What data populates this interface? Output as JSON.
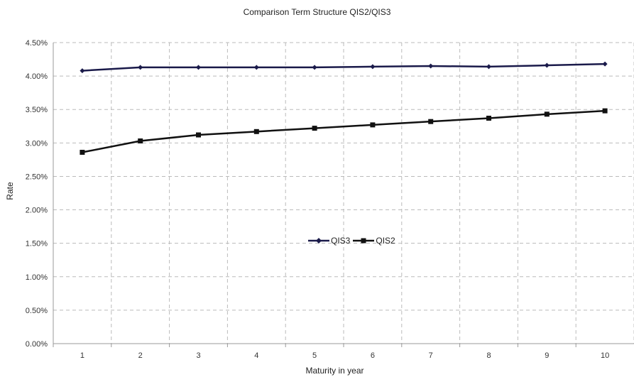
{
  "chart_data": {
    "type": "line",
    "title": "Comparison Term Structure QIS2/QIS3",
    "xlabel": "Maturity in year",
    "ylabel": "Rate",
    "categories": [
      "1",
      "2",
      "3",
      "4",
      "5",
      "6",
      "7",
      "8",
      "9",
      "10"
    ],
    "ylim": [
      0,
      0.045
    ],
    "yticks": [
      0,
      0.005,
      0.01,
      0.015,
      0.02,
      0.025,
      0.03,
      0.035,
      0.04,
      0.045
    ],
    "ytick_labels": [
      "0.00%",
      "0.50%",
      "1.00%",
      "1.50%",
      "2.00%",
      "2.50%",
      "3.00%",
      "3.50%",
      "4.00%",
      "4.50%"
    ],
    "grid": true,
    "legend_position": "center",
    "series": [
      {
        "name": "QIS3",
        "marker": "diamond",
        "color": "#1a1a4a",
        "values": [
          0.0408,
          0.0413,
          0.0413,
          0.0413,
          0.0413,
          0.0414,
          0.0415,
          0.0414,
          0.0416,
          0.0418
        ]
      },
      {
        "name": "QIS2",
        "marker": "square",
        "color": "#111111",
        "values": [
          0.0286,
          0.0303,
          0.0312,
          0.0317,
          0.0322,
          0.0327,
          0.0332,
          0.0337,
          0.0343,
          0.0348
        ]
      }
    ]
  }
}
